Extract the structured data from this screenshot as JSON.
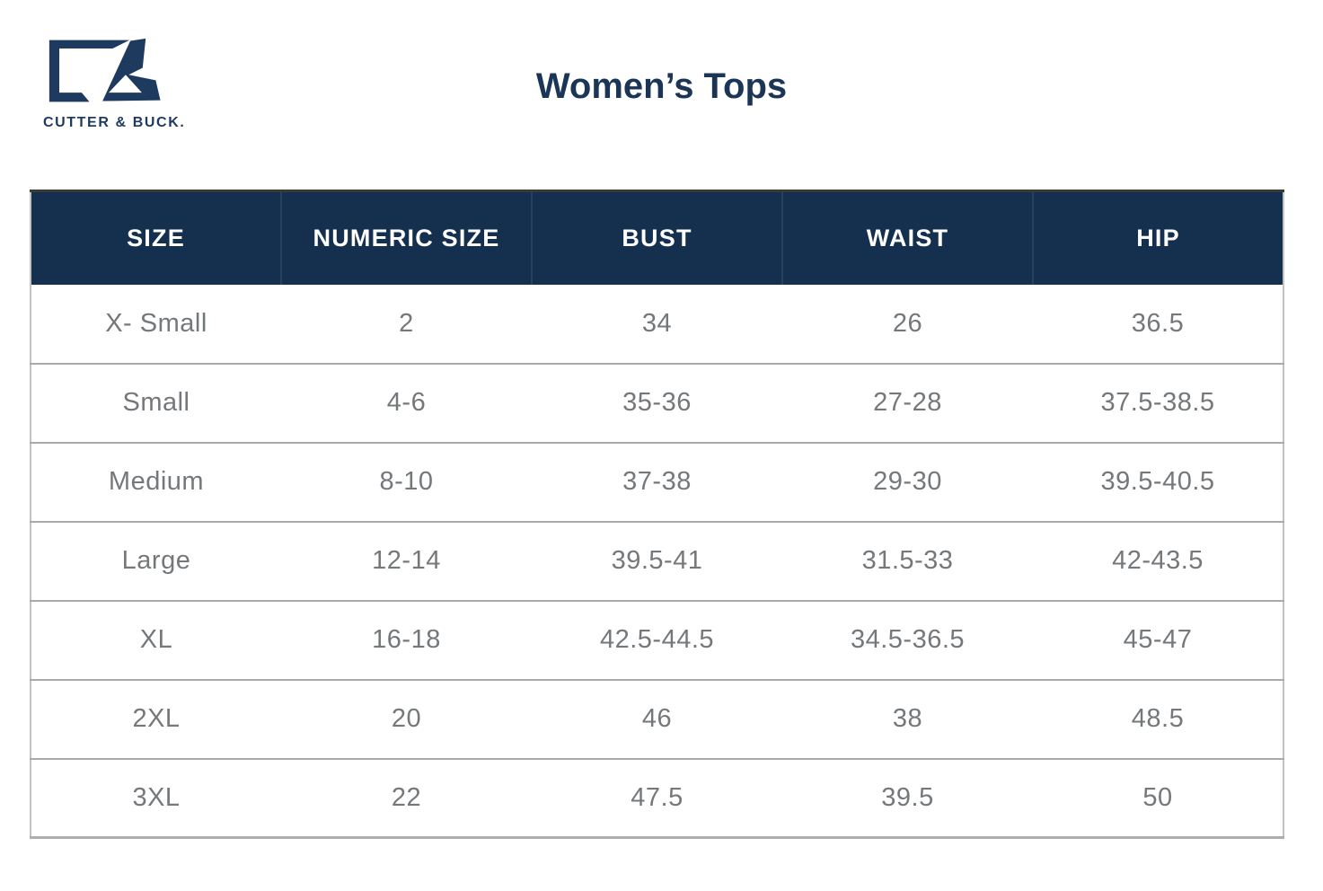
{
  "colors": {
    "brand_navy": "#1e3a5f",
    "header_bg": "#152f4e",
    "header_text": "#ffffff",
    "cell_text": "#75787b",
    "row_divider": "#a9a9a9"
  },
  "brand": {
    "logo_icon": "cutter-and-buck-cb-monogram",
    "logo_text": "CUTTER & BUCK."
  },
  "chart_data": {
    "type": "table",
    "title": "Women’s Tops",
    "columns": [
      "SIZE",
      "NUMERIC SIZE",
      "BUST",
      "WAIST",
      "HIP"
    ],
    "rows": [
      [
        "X- Small",
        "2",
        "34",
        "26",
        "36.5"
      ],
      [
        "Small",
        "4-6",
        "35-36",
        "27-28",
        "37.5-38.5"
      ],
      [
        "Medium",
        "8-10",
        "37-38",
        "29-30",
        "39.5-40.5"
      ],
      [
        "Large",
        "12-14",
        "39.5-41",
        "31.5-33",
        "42-43.5"
      ],
      [
        "XL",
        "16-18",
        "42.5-44.5",
        "34.5-36.5",
        "45-47"
      ],
      [
        "2XL",
        "20",
        "46",
        "38",
        "48.5"
      ],
      [
        "3XL",
        "22",
        "47.5",
        "39.5",
        "50"
      ]
    ]
  }
}
